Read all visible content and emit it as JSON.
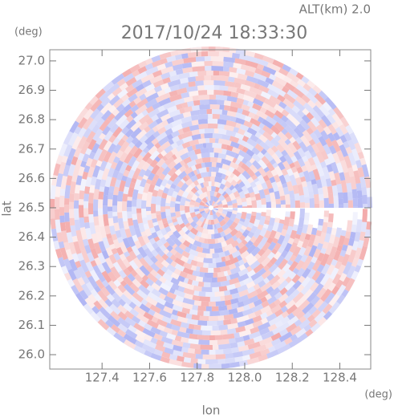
{
  "chart_data": {
    "type": "radar-ppi",
    "title": "2017/10/24 18:33:30",
    "annotation": "ALT(km)  2.0",
    "x_label": "lon",
    "x_unit": "(deg)",
    "y_label": "lat",
    "y_unit": "(deg)",
    "xlim": [
      127.18,
      128.53
    ],
    "ylim": [
      25.951,
      27.038
    ],
    "xticks": [
      127.4,
      127.6,
      127.8,
      {
        "value": 128.0,
        "label": "128.0"
      },
      128.2,
      128.4
    ],
    "yticks": [
      {
        "value": 26.0,
        "label": "26.0"
      },
      26.1,
      26.2,
      26.3,
      26.4,
      26.5,
      26.6,
      26.7,
      26.8,
      26.9,
      {
        "value": 27.0,
        "label": "27.0"
      }
    ],
    "colors": [
      "#f2a2a2",
      "#a6acf2"
    ]
  }
}
